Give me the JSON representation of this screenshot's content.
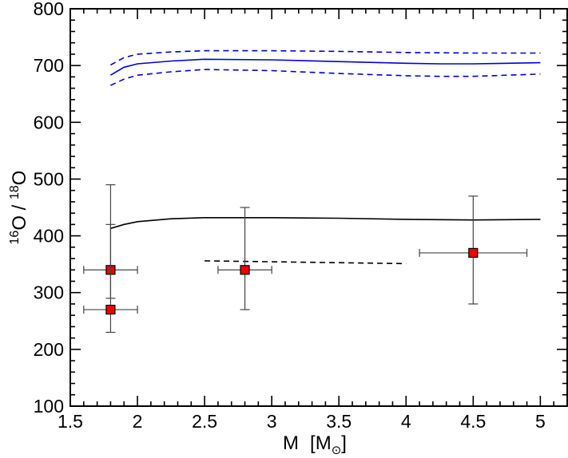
{
  "chart_data": {
    "type": "scatter",
    "title": "",
    "xlabel": {
      "main": "M",
      "unit_open": "[M",
      "unit_sub": "⊙",
      "unit_close": "]"
    },
    "ylabel": {
      "sup1": "16",
      "base1": "O",
      "sep": " / ",
      "sup2": "18",
      "base2": "O"
    },
    "xlim": [
      1.5,
      5.2
    ],
    "ylim": [
      100,
      800
    ],
    "xticks": [
      1.5,
      2,
      2.5,
      3,
      3.5,
      4,
      4.5,
      5
    ],
    "xtick_labels": [
      "1.5",
      "2",
      "2.5",
      "3",
      "3.5",
      "4",
      "4.5",
      "5"
    ],
    "yticks": [
      100,
      200,
      300,
      400,
      500,
      600,
      700,
      800
    ],
    "ytick_labels": [
      "100",
      "200",
      "300",
      "400",
      "500",
      "600",
      "700",
      "800"
    ],
    "x_minor_step": 0.1,
    "y_minor_step": 20,
    "lines": [
      {
        "name": "model-blue",
        "color": "#0000dd",
        "style": "solid",
        "x": [
          1.8,
          1.9,
          2.0,
          2.25,
          2.5,
          3.0,
          3.5,
          4.0,
          4.25,
          4.5,
          5.0
        ],
        "y": [
          683,
          697,
          703,
          708,
          711,
          710,
          707,
          704,
          703,
          703,
          705
        ]
      },
      {
        "name": "model-blue-upper",
        "color": "#0000dd",
        "style": "dashed",
        "x": [
          1.8,
          1.9,
          2.0,
          2.25,
          2.5,
          3.0,
          3.5,
          4.0,
          4.5,
          5.0
        ],
        "y": [
          701,
          714,
          720,
          724,
          726,
          726,
          725,
          723,
          722,
          722
        ]
      },
      {
        "name": "model-blue-lower",
        "color": "#0000dd",
        "style": "dashed",
        "x": [
          1.8,
          1.9,
          2.0,
          2.25,
          2.5,
          3.0,
          3.5,
          4.0,
          4.25,
          4.5,
          5.0
        ],
        "y": [
          665,
          676,
          683,
          689,
          693,
          691,
          686,
          682,
          681,
          681,
          685
        ]
      },
      {
        "name": "model-black",
        "color": "#000000",
        "style": "solid",
        "x": [
          1.8,
          1.9,
          2.0,
          2.25,
          2.5,
          3.0,
          3.5,
          4.0,
          4.5,
          5.0
        ],
        "y": [
          413,
          420,
          425,
          430,
          432,
          432,
          431,
          429,
          428,
          429
        ]
      },
      {
        "name": "model-black-dashed",
        "color": "#000000",
        "style": "dashed",
        "x": [
          2.5,
          4.0
        ],
        "y": [
          356,
          351
        ]
      }
    ],
    "points": [
      {
        "x": 1.8,
        "y": 340,
        "xerr": [
          1.6,
          2.0
        ],
        "yerr": [
          290,
          420
        ]
      },
      {
        "x": 1.8,
        "y": 270,
        "xerr": [
          1.6,
          2.0
        ],
        "yerr": [
          230,
          490
        ]
      },
      {
        "x": 2.8,
        "y": 340,
        "xerr": [
          2.6,
          3.0
        ],
        "yerr": [
          270,
          450
        ]
      },
      {
        "x": 4.5,
        "y": 370,
        "xerr": [
          4.1,
          4.9
        ],
        "yerr": [
          280,
          470
        ]
      }
    ],
    "marker_color": "#ee0000",
    "errorbar_color": "#444444"
  }
}
